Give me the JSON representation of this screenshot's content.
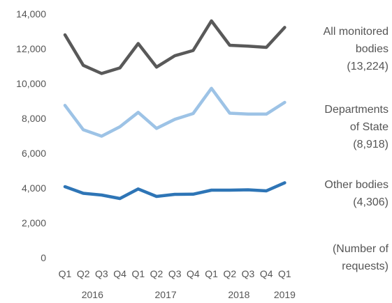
{
  "chart_data": {
    "type": "line",
    "quarters": [
      "Q1",
      "Q2",
      "Q3",
      "Q4",
      "Q1",
      "Q2",
      "Q3",
      "Q4",
      "Q1",
      "Q2",
      "Q3",
      "Q4",
      "Q1"
    ],
    "years": [
      {
        "label": "2016",
        "quarters": 4
      },
      {
        "label": "2017",
        "quarters": 4
      },
      {
        "label": "2018",
        "quarters": 4
      },
      {
        "label": "2019",
        "quarters": 1
      }
    ],
    "y_ticks": [
      "0",
      "2,000",
      "4,000",
      "6,000",
      "8,000",
      "10,000",
      "12,000",
      "14,000"
    ],
    "ylim": [
      0,
      14000
    ],
    "unit_label": [
      "(Number of",
      "requests)"
    ],
    "series": [
      {
        "name": "All monitored bodies",
        "label_lines": [
          "All monitored",
          "bodies",
          "(13,224)"
        ],
        "color": "#595959",
        "values": [
          12800,
          11050,
          10580,
          10900,
          12300,
          10950,
          11600,
          11900,
          13600,
          12200,
          12150,
          12080,
          13224
        ]
      },
      {
        "name": "Departments of State",
        "label_lines": [
          "Departments",
          "of State",
          "(8,918)"
        ],
        "color": "#9dc3e6",
        "values": [
          8750,
          7350,
          6980,
          7520,
          8350,
          7430,
          7950,
          8280,
          9730,
          8300,
          8250,
          8250,
          8918
        ]
      },
      {
        "name": "Other bodies",
        "label_lines": [
          "Other bodies",
          "(4,306)"
        ],
        "color": "#2e75b6",
        "values": [
          4080,
          3700,
          3600,
          3400,
          3950,
          3520,
          3640,
          3650,
          3880,
          3880,
          3900,
          3840,
          4306
        ]
      }
    ]
  }
}
